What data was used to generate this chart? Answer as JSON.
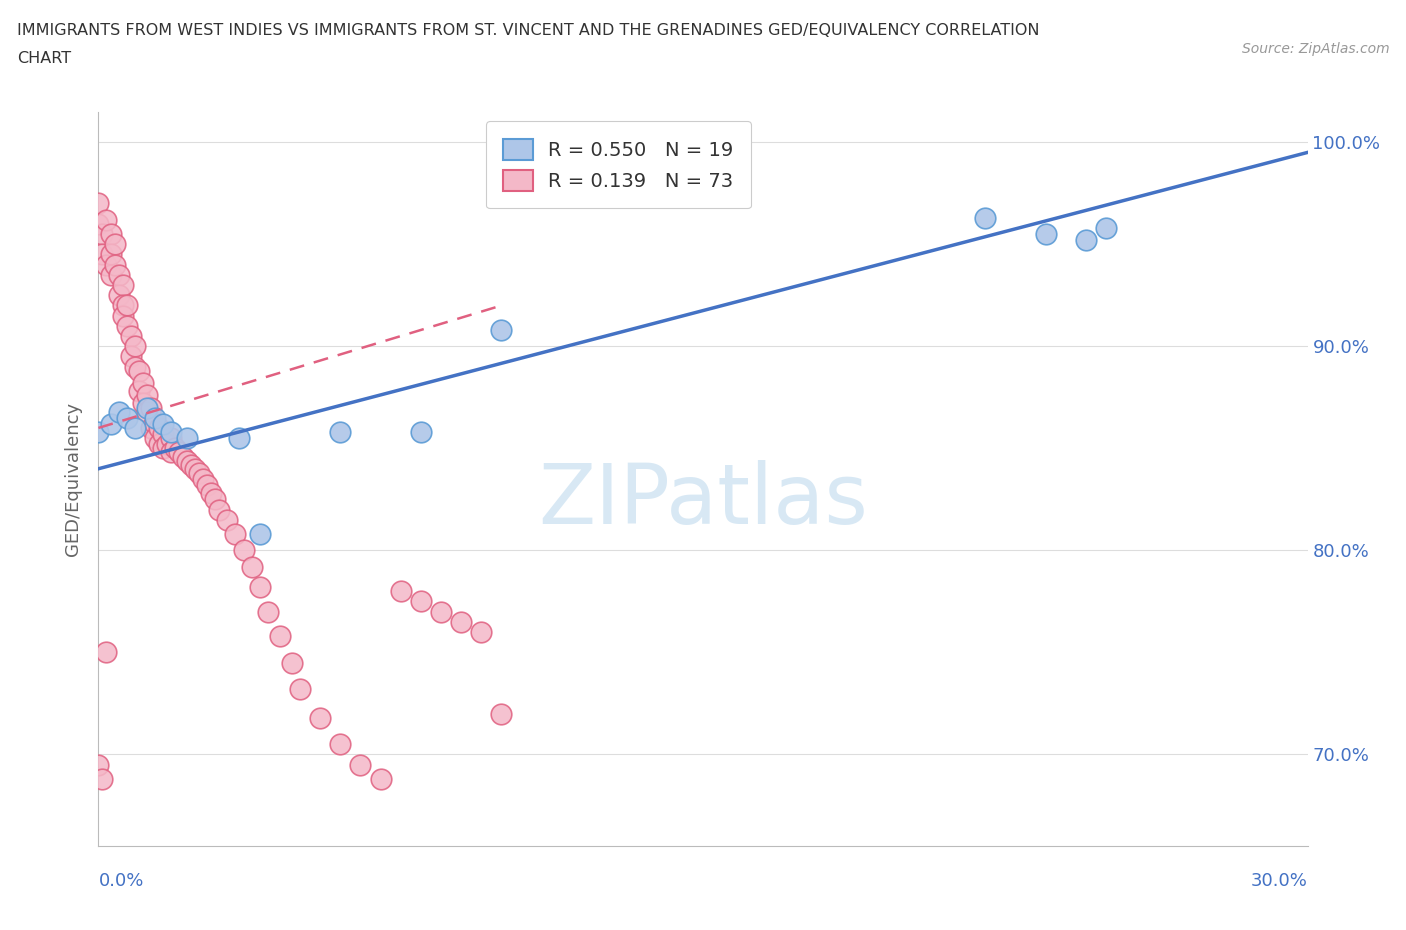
{
  "title_line1": "IMMIGRANTS FROM WEST INDIES VS IMMIGRANTS FROM ST. VINCENT AND THE GRENADINES GED/EQUIVALENCY CORRELATION",
  "title_line2": "CHART",
  "source_text": "Source: ZipAtlas.com",
  "ylabel": "GED/Equivalency",
  "watermark": "ZIPatlas",
  "blue_R": 0.55,
  "blue_N": 19,
  "pink_R": 0.139,
  "pink_N": 73,
  "blue_fill_color": "#aec6e8",
  "blue_edge_color": "#5b9bd5",
  "pink_fill_color": "#f4b8c8",
  "pink_edge_color": "#e06080",
  "blue_line_color": "#4472c4",
  "pink_line_color": "#e07090",
  "blue_scatter_x": [
    0.0,
    0.003,
    0.005,
    0.007,
    0.009,
    0.012,
    0.014,
    0.016,
    0.018,
    0.022,
    0.1,
    0.22,
    0.235,
    0.245,
    0.25,
    0.035,
    0.04,
    0.06,
    0.08
  ],
  "blue_scatter_y": [
    0.858,
    0.862,
    0.868,
    0.865,
    0.86,
    0.87,
    0.865,
    0.862,
    0.858,
    0.855,
    0.908,
    0.963,
    0.955,
    0.952,
    0.958,
    0.855,
    0.808,
    0.858,
    0.858
  ],
  "pink_scatter_x": [
    0.0,
    0.0,
    0.001,
    0.001,
    0.002,
    0.002,
    0.003,
    0.003,
    0.003,
    0.004,
    0.004,
    0.005,
    0.005,
    0.006,
    0.006,
    0.006,
    0.007,
    0.007,
    0.008,
    0.008,
    0.009,
    0.009,
    0.01,
    0.01,
    0.011,
    0.011,
    0.012,
    0.012,
    0.013,
    0.013,
    0.014,
    0.014,
    0.015,
    0.015,
    0.016,
    0.016,
    0.017,
    0.018,
    0.018,
    0.019,
    0.02,
    0.021,
    0.022,
    0.023,
    0.024,
    0.025,
    0.026,
    0.027,
    0.028,
    0.029,
    0.03,
    0.032,
    0.034,
    0.036,
    0.038,
    0.04,
    0.042,
    0.045,
    0.048,
    0.05,
    0.055,
    0.06,
    0.065,
    0.07,
    0.075,
    0.08,
    0.085,
    0.09,
    0.095,
    0.1,
    0.0,
    0.001,
    0.002
  ],
  "pink_scatter_y": [
    0.97,
    0.96,
    0.955,
    0.945,
    0.962,
    0.94,
    0.955,
    0.945,
    0.935,
    0.95,
    0.94,
    0.935,
    0.925,
    0.93,
    0.92,
    0.915,
    0.92,
    0.91,
    0.905,
    0.895,
    0.9,
    0.89,
    0.888,
    0.878,
    0.882,
    0.872,
    0.876,
    0.868,
    0.87,
    0.86,
    0.862,
    0.855,
    0.86,
    0.852,
    0.857,
    0.85,
    0.852,
    0.855,
    0.848,
    0.85,
    0.848,
    0.846,
    0.844,
    0.842,
    0.84,
    0.838,
    0.835,
    0.832,
    0.828,
    0.825,
    0.82,
    0.815,
    0.808,
    0.8,
    0.792,
    0.782,
    0.77,
    0.758,
    0.745,
    0.732,
    0.718,
    0.705,
    0.695,
    0.688,
    0.78,
    0.775,
    0.77,
    0.765,
    0.76,
    0.72,
    0.695,
    0.688,
    0.75
  ],
  "xlim": [
    0.0,
    0.3
  ],
  "ylim": [
    0.655,
    1.015
  ],
  "yticks": [
    0.7,
    0.8,
    0.9,
    1.0
  ],
  "ytick_labels": [
    "70.0%",
    "80.0%",
    "90.0%",
    "100.0%"
  ],
  "xticks": [
    0.0,
    0.05,
    0.1,
    0.15,
    0.2,
    0.25,
    0.3
  ],
  "blue_trend_x0": 0.0,
  "blue_trend_x1": 0.3,
  "blue_trend_y0": 0.84,
  "blue_trend_y1": 0.995,
  "pink_trend_x0": 0.0,
  "pink_trend_x1": 0.1,
  "pink_trend_y0": 0.86,
  "pink_trend_y1": 0.92,
  "background_color": "#ffffff",
  "grid_color": "#dddddd",
  "spine_color": "#bbbbbb",
  "label_color": "#4472c4",
  "text_color": "#333333",
  "source_color": "#999999",
  "watermark_color": "#c8dff0"
}
